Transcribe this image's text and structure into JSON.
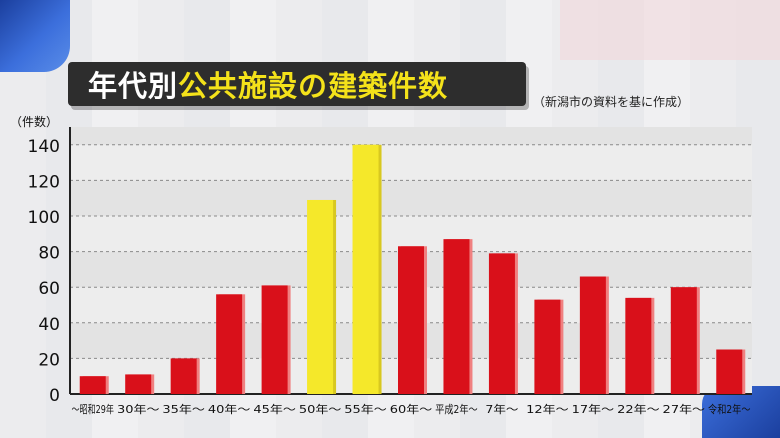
{
  "header": {
    "title_white": "年代別",
    "title_yellow": "公共施設の建築件数",
    "source_note": "（新潟市の資料を基に作成）"
  },
  "colors": {
    "bar_red": "#d9101a",
    "bar_yellow": "#f5e82a",
    "bar_shade_red": "#f08080",
    "bar_shade_yellow": "#d8c820",
    "plot_band_dark": "#e3e3e3",
    "plot_band_light": "#ededed"
  },
  "chart_data": {
    "type": "bar",
    "title": "年代別公共施設の建築件数",
    "ylabel": "（件数）",
    "xlabel": "",
    "ylim": [
      0,
      150
    ],
    "yticks": [
      0,
      20,
      40,
      60,
      80,
      100,
      120,
      140
    ],
    "grid": true,
    "legend": "none",
    "categories": [
      "～昭和29年",
      "30年～",
      "35年～",
      "40年～",
      "45年～",
      "50年～",
      "55年～",
      "60年～",
      "平成2年～",
      "7年～",
      "12年～",
      "17年～",
      "22年～",
      "27年～",
      "令和2年～"
    ],
    "values": [
      10,
      11,
      20,
      56,
      61,
      109,
      140,
      83,
      87,
      79,
      53,
      66,
      54,
      60,
      25
    ],
    "highlight": [
      false,
      false,
      false,
      false,
      false,
      true,
      true,
      false,
      false,
      false,
      false,
      false,
      false,
      false,
      false
    ]
  }
}
